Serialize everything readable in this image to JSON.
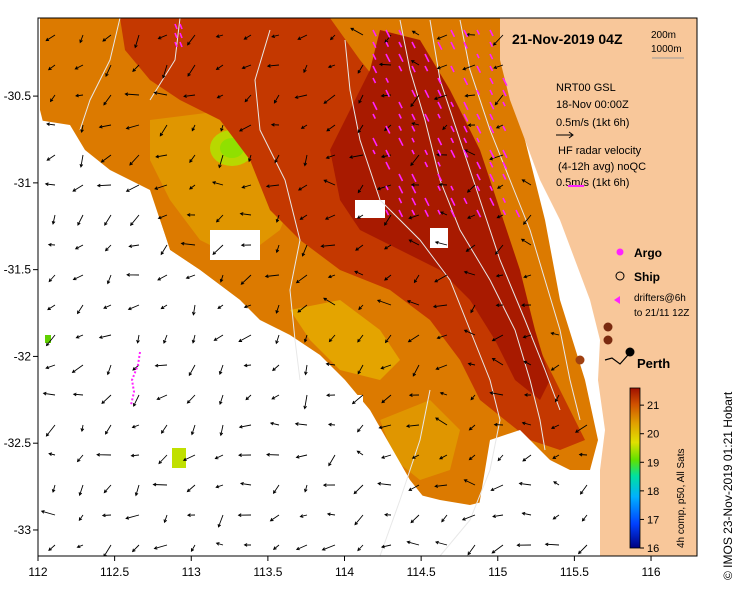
{
  "map": {
    "date_title": "21-Nov-2019 04Z",
    "contour_labels": [
      "200m",
      "1000m"
    ],
    "x_ticks": [
      "112",
      "112.5",
      "113",
      "113.5",
      "114",
      "114.5",
      "115",
      "115.5",
      "116"
    ],
    "y_ticks": [
      "-30.5",
      "-31",
      "-31.5",
      "-32",
      "-32.5",
      "-33"
    ],
    "x_range": [
      112,
      116.3
    ],
    "y_range": [
      -30.05,
      -33.15
    ]
  },
  "legend": {
    "gsl_line1": "NRT00 GSL",
    "gsl_line2": "18-Nov 00:00Z",
    "gsl_scale": "0.5m/s (1kt 6h)",
    "hf_line1": "HF radar velocity",
    "hf_line2": "(4-12h avg) noQC",
    "hf_scale": "0.5m/s (1kt 6h)",
    "argo_label": "Argo",
    "ship_label": "Ship",
    "drifters_line1": "drifters@6h",
    "drifters_line2": "to 21/11 12Z",
    "city_label": "Perth"
  },
  "colorbar": {
    "ticks": [
      "21",
      "20",
      "19",
      "18",
      "17",
      "16"
    ],
    "title": "4h comp, p50, All Sats",
    "range": [
      16,
      21.6
    ]
  },
  "credit": "© IMOS 23-Nov-2019 01:21 Hobart",
  "colors": {
    "land": "#f8c79a",
    "sst_warm": "#c42c00",
    "sst_mid": "#d86a00",
    "sst_cool": "#e4a000",
    "hf_radar": "#ff22ff",
    "ship": "#7a2a10"
  }
}
